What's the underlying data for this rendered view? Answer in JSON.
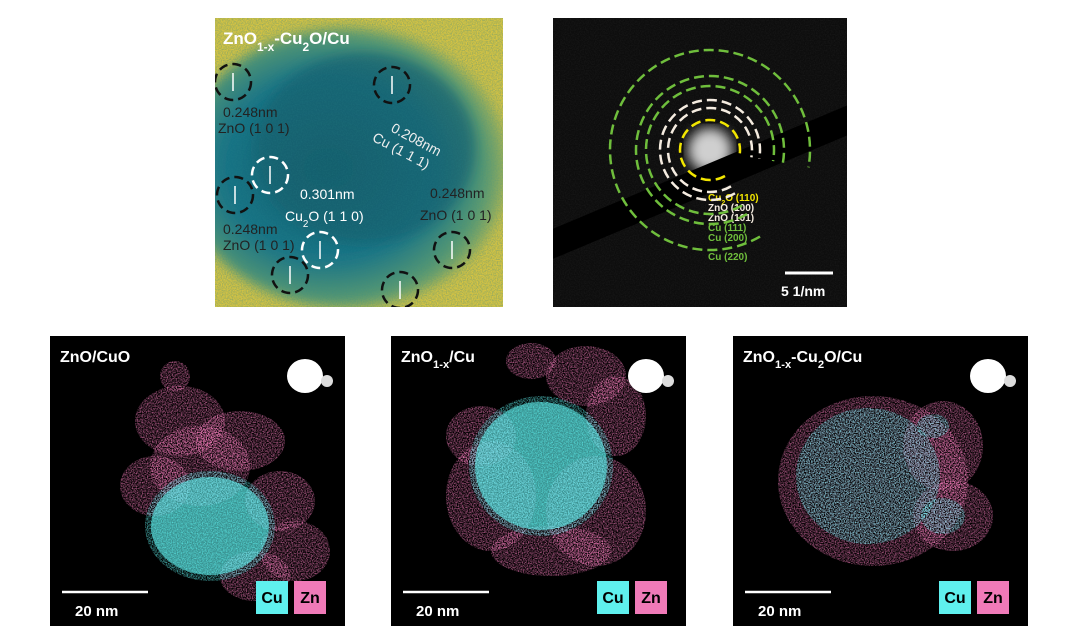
{
  "hrtem": {
    "title": [
      "ZnO",
      "1-x",
      "-Cu",
      "2",
      "O/Cu"
    ],
    "annotations": [
      {
        "spacing": "0.248nm",
        "plane": [
          "ZnO (1 0 1)"
        ]
      },
      {
        "spacing": "0.208nm",
        "plane": [
          "Cu (1 1 1)"
        ]
      },
      {
        "spacing": "0.301nm",
        "plane": [
          "Cu",
          "2",
          "O (1 1 0)"
        ]
      },
      {
        "spacing": "0.248nm",
        "plane": [
          "ZnO (1 0 1)"
        ]
      },
      {
        "spacing": "0.248nm",
        "plane": [
          "ZnO (1 0 1)"
        ]
      }
    ]
  },
  "saed": {
    "rings": [
      {
        "label": [
          "Cu",
          "2",
          "O (110)"
        ],
        "color": "#f2e600"
      },
      {
        "label": [
          "ZnO (100)"
        ],
        "color": "#f5ece0"
      },
      {
        "label": [
          "ZnO (101)"
        ],
        "color": "#f5ece0"
      },
      {
        "label": [
          "Cu (111)"
        ],
        "color": "#6fbe3c"
      },
      {
        "label": [
          "Cu (200)"
        ],
        "color": "#6fbe3c"
      },
      {
        "label": [
          "Cu (220)"
        ],
        "color": "#6fbe3c"
      }
    ],
    "scale_bar": "5 1/nm"
  },
  "eds": {
    "legend": [
      {
        "label": "Cu",
        "color": "#5ff0ee"
      },
      {
        "label": "Zn",
        "color": "#f07ab8"
      }
    ],
    "panels": [
      {
        "title": [
          "ZnO/CuO"
        ],
        "scale_bar": "20 nm"
      },
      {
        "title": [
          "ZnO",
          "1-x",
          "/Cu"
        ],
        "scale_bar": "20 nm"
      },
      {
        "title": [
          "ZnO",
          "1-x",
          "-Cu",
          "2",
          "O/Cu"
        ],
        "scale_bar": "20 nm"
      }
    ]
  }
}
